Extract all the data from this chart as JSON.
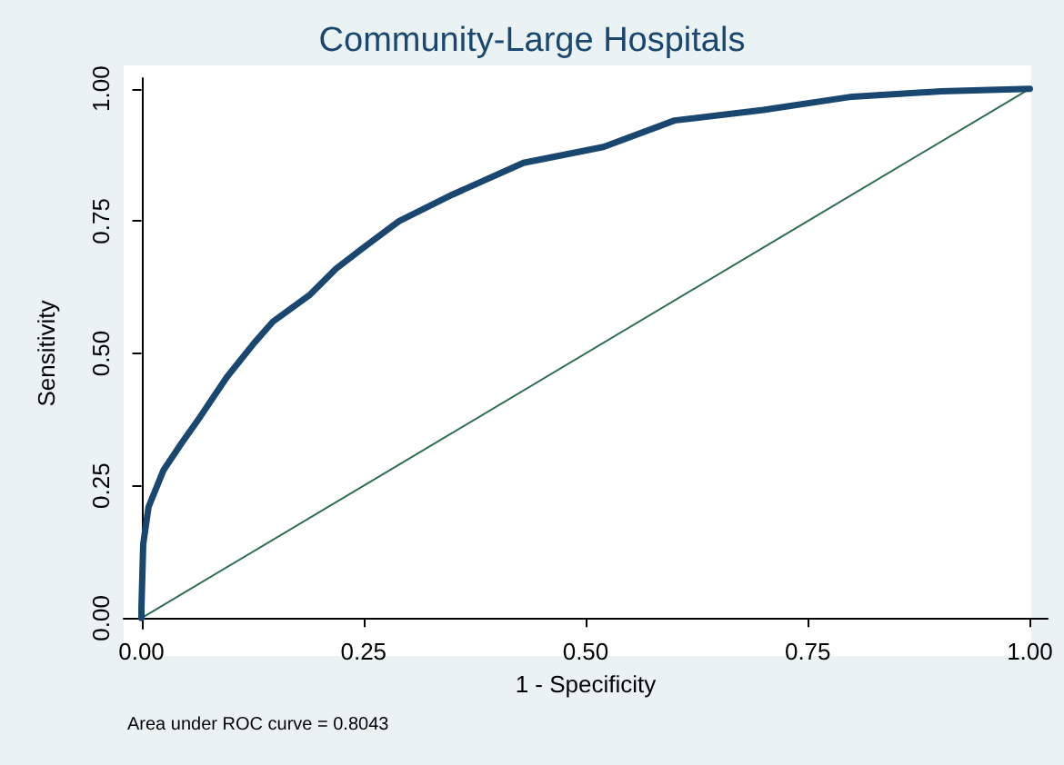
{
  "chart_data": {
    "type": "line",
    "title": "Community-Large Hospitals",
    "xlabel": "1 - Specificity",
    "ylabel": "Sensitivity",
    "annotations": [
      "Area under ROC curve = 0.8043"
    ],
    "series": [
      {
        "color": "#1a476f",
        "x": [
          0,
          0,
          0.001,
          0.002,
          0.008,
          0.025,
          0.045,
          0.066,
          0.096,
          0.127,
          0.148,
          0.189,
          0.219,
          0.25,
          0.29,
          0.35,
          0.43,
          0.52,
          0.6,
          0.7,
          0.8,
          0.9,
          1
        ],
        "values": [
          0,
          0.02,
          0.08,
          0.14,
          0.21,
          0.28,
          0.33,
          0.38,
          0.455,
          0.52,
          0.56,
          0.61,
          0.66,
          0.7,
          0.75,
          0.8,
          0.86,
          0.89,
          0.94,
          0.96,
          0.985,
          0.995,
          1
        ]
      },
      {
        "color": "#2d6d4f",
        "x": [
          0,
          1
        ],
        "values": [
          0,
          1
        ]
      }
    ],
    "xlim": [
      -0.02,
      1.02
    ],
    "ylim": [
      -0.02,
      1.02
    ],
    "xticks": [
      {
        "value": 0,
        "label": "0.00"
      },
      {
        "value": 0.25,
        "label": "0.25"
      },
      {
        "value": 0.5,
        "label": "0.50"
      },
      {
        "value": 0.75,
        "label": "0.75"
      },
      {
        "value": 1,
        "label": "1.00"
      }
    ],
    "yticks": [
      {
        "value": 0,
        "label": "0.00"
      },
      {
        "value": 0.25,
        "label": "0.25"
      },
      {
        "value": 0.5,
        "label": "0.50"
      },
      {
        "value": 0.75,
        "label": "0.75"
      },
      {
        "value": 1,
        "label": "1.00"
      }
    ],
    "line_style": "solid"
  }
}
